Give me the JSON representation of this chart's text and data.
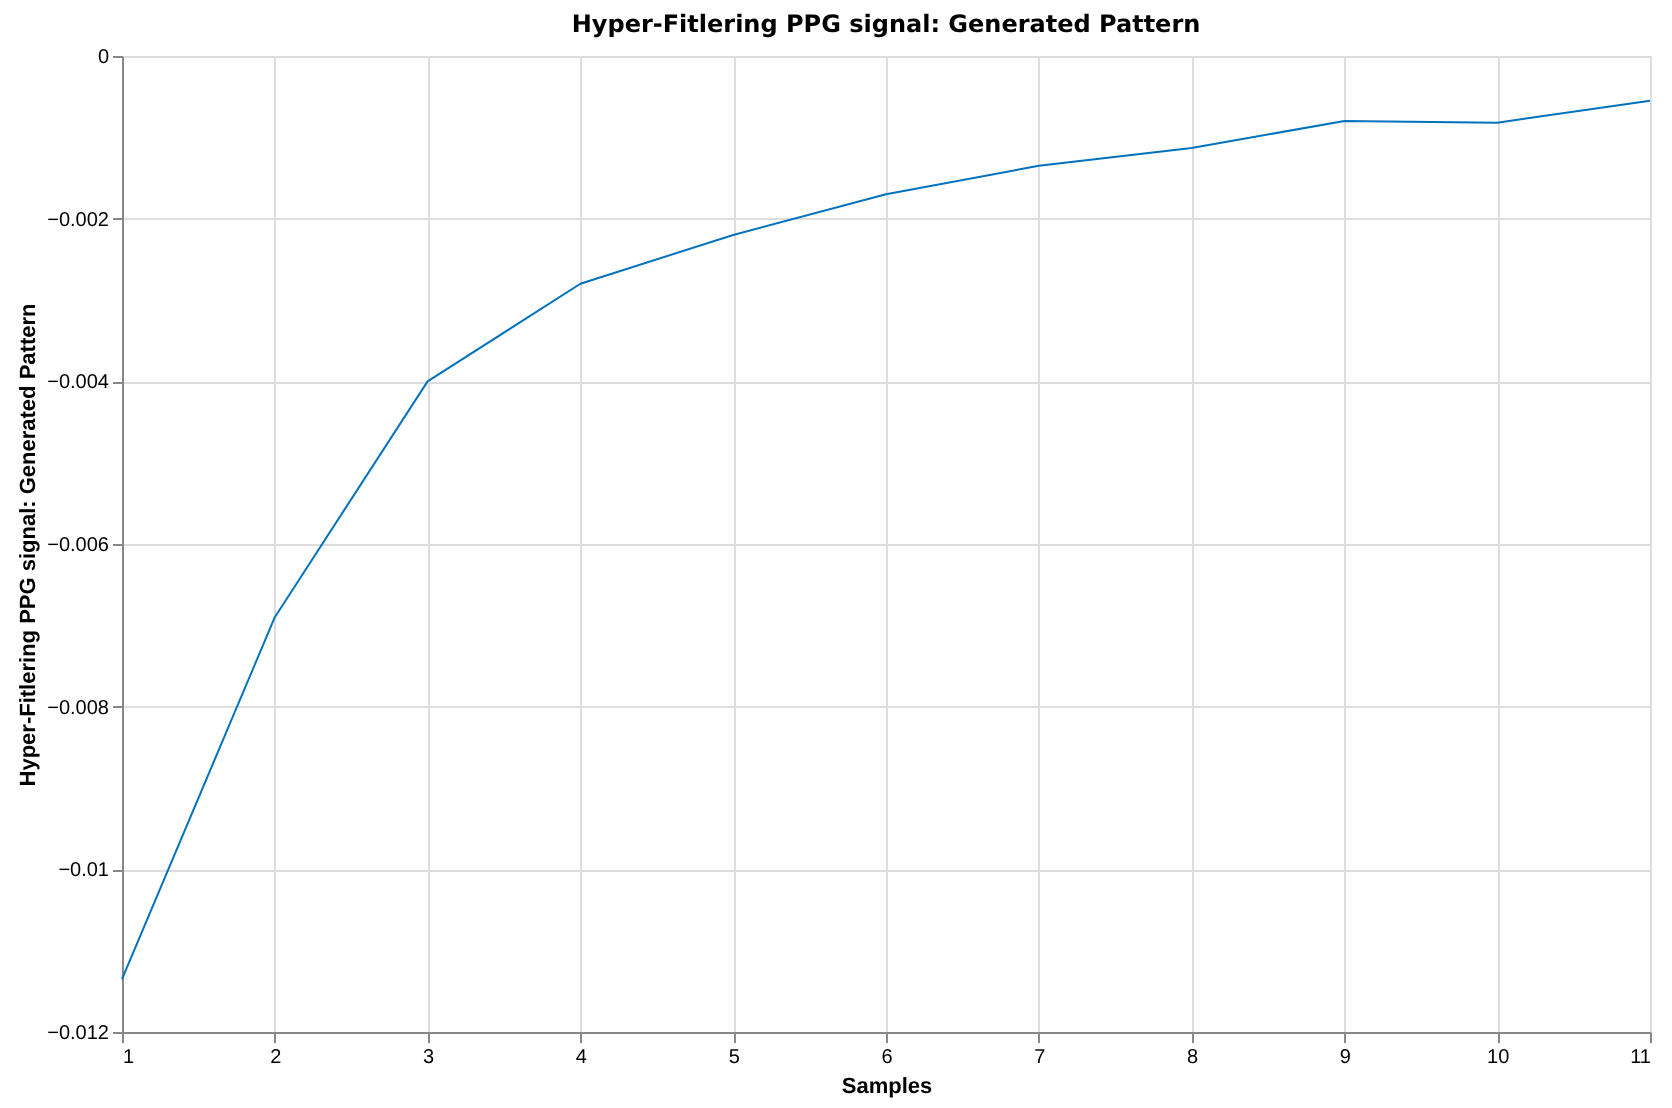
{
  "chart_data": {
    "type": "line",
    "title": "Hyper-Fitlering PPG signal: Generated Pattern",
    "xlabel": "Samples",
    "ylabel": "Hyper-Fitlering PPG signal: Generated Pattern",
    "x": [
      1,
      2,
      3,
      4,
      5,
      6,
      7,
      8,
      9,
      10,
      11
    ],
    "series": [
      {
        "color": "#0072bd",
        "values": [
          -0.01135,
          -0.0069,
          -0.004,
          -0.0028,
          -0.0022,
          -0.0017,
          -0.00135,
          -0.00113,
          -0.0008,
          -0.00082,
          -0.00055
        ]
      }
    ],
    "xlim": [
      1,
      11
    ],
    "xticks": [
      1,
      2,
      3,
      4,
      5,
      6,
      7,
      8,
      9,
      10,
      11
    ],
    "ylim": [
      -0.012,
      0
    ],
    "yticks": [
      -0.012,
      -0.01,
      -0.008,
      -0.006,
      -0.004,
      -0.002,
      0
    ],
    "grid": true,
    "marker": "none",
    "line_style": "solid"
  }
}
